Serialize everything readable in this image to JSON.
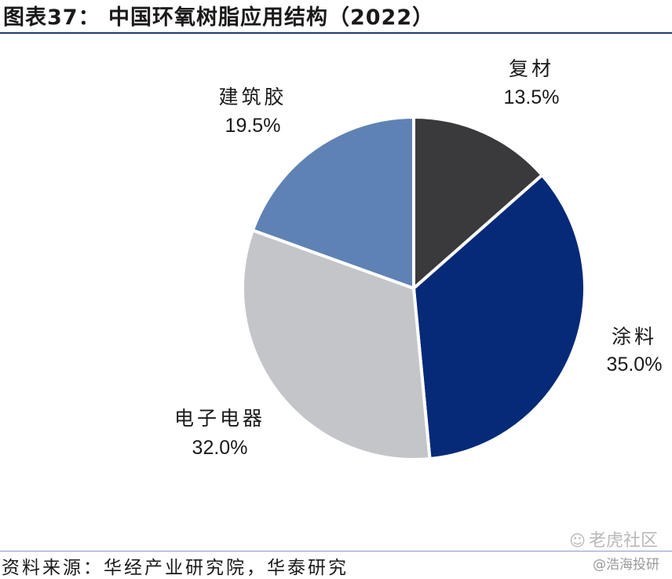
{
  "title": "图表37： 中国环氧树脂应用结构（2022）",
  "chart_data": {
    "type": "pie",
    "slices": [
      {
        "name": "复材",
        "value": 13.5,
        "label": "13.5%",
        "color": "#3a3a3c"
      },
      {
        "name": "涂料",
        "value": 35.0,
        "label": "35.0%",
        "color": "#062a78"
      },
      {
        "name": "电子电器",
        "value": 32.0,
        "label": "32.0%",
        "color": "#c4c5c8"
      },
      {
        "name": "建筑胶",
        "value": 19.5,
        "label": "19.5%",
        "color": "#5f82b4"
      }
    ],
    "start_angle_deg": 0,
    "direction": "clockwise"
  },
  "source": "资料来源：华经产业研究院，华泰研究",
  "watermark": {
    "icon": "tiger-community-icon",
    "brand": "老虎社区",
    "account": "@浩海投研"
  }
}
